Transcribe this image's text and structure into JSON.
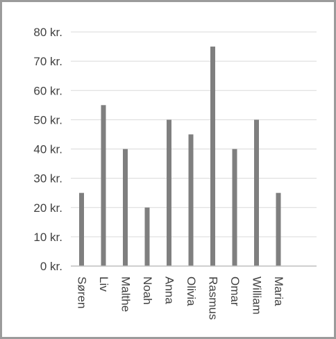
{
  "chart_data": {
    "type": "bar",
    "title": "",
    "xlabel": "",
    "ylabel": "",
    "categories": [
      "Søren",
      "Liv",
      "Malthe",
      "Noah",
      "Anna",
      "Olivia",
      "Rasmus",
      "Omar",
      "William",
      "Maria"
    ],
    "values": [
      25,
      55,
      40,
      20,
      50,
      45,
      75,
      40,
      50,
      25
    ],
    "ylim": [
      0,
      80
    ],
    "yticks": [
      0,
      10,
      20,
      30,
      40,
      50,
      60,
      70,
      80
    ],
    "ytick_labels": [
      "0 kr.",
      "10 kr.",
      "20 kr.",
      "30 kr.",
      "40 kr.",
      "50 kr.",
      "60 kr.",
      "70 kr.",
      "80 kr."
    ],
    "grid": true,
    "legend": "none",
    "bar_color": "#7f7f7f",
    "grid_color": "#d9d9d9",
    "axis_color": "#bfbfbf",
    "frame_color": "#9b9b9b"
  }
}
